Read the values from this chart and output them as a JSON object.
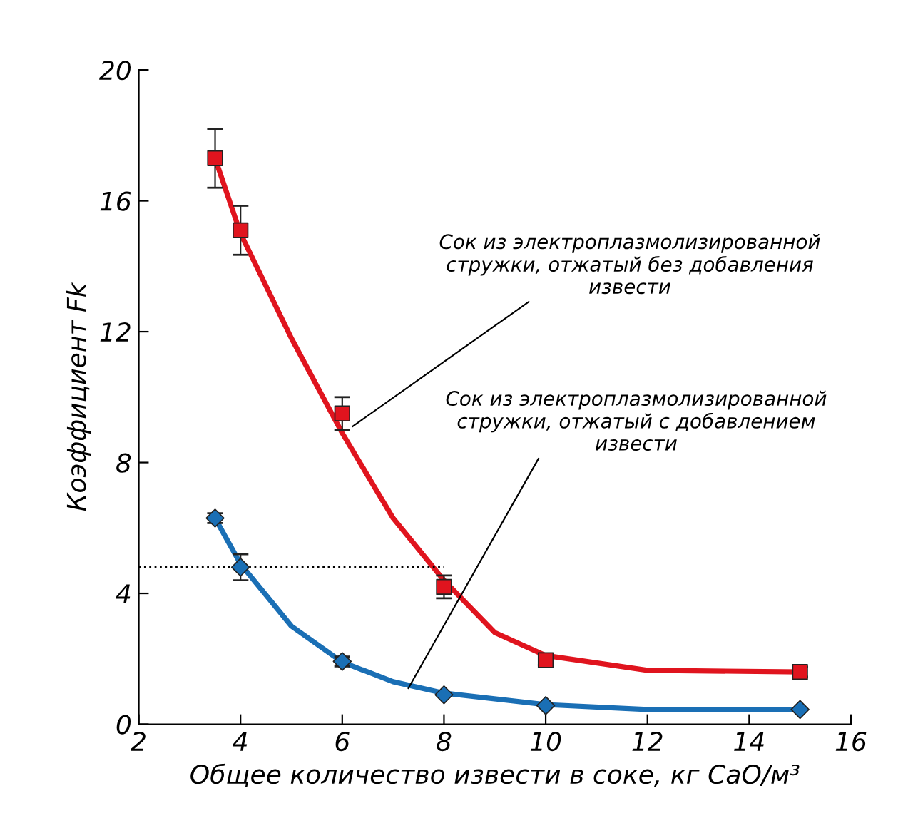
{
  "chart_data": {
    "type": "scatter",
    "xlabel": "Общее количество извести в соке, кг CaO/м³",
    "ylabel": "Коэффициент Fk",
    "xlim": [
      2,
      16
    ],
    "xticks": [
      2,
      4,
      6,
      8,
      10,
      12,
      14,
      16
    ],
    "ylim": [
      0,
      20
    ],
    "yticks": [
      0,
      4,
      8,
      12,
      16,
      20
    ],
    "grid": false,
    "legend": false,
    "series": [
      {
        "color": "#e0141e",
        "marker": "square",
        "x": [
          3.5,
          4,
          6,
          8,
          10,
          15
        ],
        "values": [
          17.3,
          15.1,
          9.5,
          4.2,
          1.96,
          1.6
        ],
        "errors": [
          0.9,
          0.75,
          0.5,
          0.35,
          0.15,
          0.15
        ]
      },
      {
        "color": "#1a6fb5",
        "marker": "diamond",
        "x": [
          3.5,
          4,
          6,
          8,
          10,
          15
        ],
        "values": [
          6.3,
          4.8,
          1.92,
          0.9,
          0.57,
          0.45
        ],
        "errors": [
          0.15,
          0.4,
          0.15,
          null,
          null,
          null
        ]
      },
      {
        "type": "line",
        "color": "#e0141e",
        "line_style": "solid",
        "x": [
          3.5,
          4,
          5,
          6,
          7,
          8,
          9,
          10,
          12,
          15
        ],
        "values": [
          17.3,
          15.0,
          11.8,
          8.9,
          6.3,
          4.4,
          2.8,
          2.1,
          1.65,
          1.6
        ]
      },
      {
        "type": "line",
        "color": "#1a6fb5",
        "line_style": "solid",
        "x": [
          3.5,
          4,
          5,
          6,
          7,
          8,
          10,
          12,
          15
        ],
        "values": [
          6.3,
          4.9,
          3.0,
          1.9,
          1.3,
          0.95,
          0.6,
          0.45,
          0.45
        ]
      },
      {
        "type": "line",
        "color": "#000000",
        "line_style": "dotted",
        "x": [
          2,
          8
        ],
        "values": [
          4.8,
          4.8
        ]
      }
    ],
    "annotations": [
      {
        "text": "Сок из электроплазмолизированной\nстружки, отжатый без добавления\nизвести",
        "x": 6.2,
        "y": 9.1
      },
      {
        "text": "Сок из электроплазмолизированной\nстружки, отжатый с добавлением\nизвести",
        "x": 7.3,
        "y": 1.1
      }
    ]
  }
}
